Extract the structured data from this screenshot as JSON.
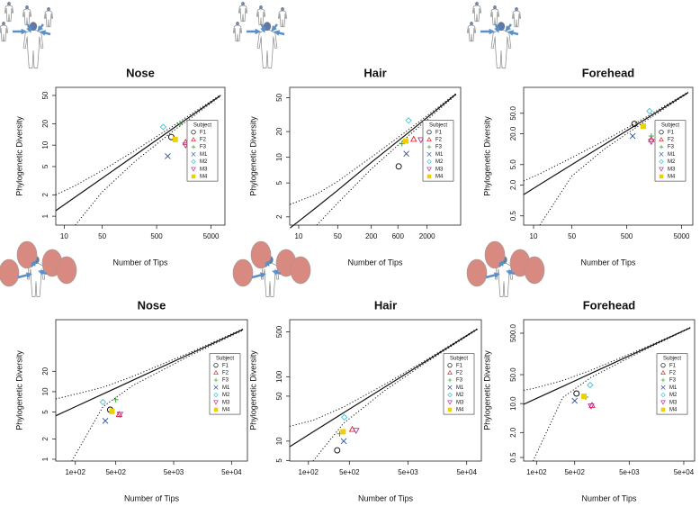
{
  "chart_data": [
    {
      "type": "scatter",
      "title": "Nose",
      "xlabel": "Number of Tips",
      "ylabel": "Phylogenetic Diversity",
      "xlog": true,
      "ylog": true,
      "xlim": [
        7,
        9000
      ],
      "ylim": [
        0.75,
        65
      ],
      "xticks": [
        10,
        50,
        500,
        5000
      ],
      "yticks": [
        1,
        2,
        5,
        10,
        20,
        50
      ],
      "legend": "right",
      "legend_title": "Subject",
      "curve": {
        "x": [
          7,
          16,
          50,
          200,
          1000,
          7500
        ],
        "values": [
          1.2,
          1.87,
          3.43,
          7.2,
          17.2,
          50
        ],
        "upper": [
          2.0,
          2.7,
          4.4,
          8.4,
          18.6,
          51
        ],
        "lower": [
          null,
          0.75,
          2.2,
          5.9,
          15.8,
          49
        ]
      },
      "series": [
        {
          "name": "F1",
          "color": "#000000",
          "marker": "circle",
          "x": [
            930
          ],
          "values": [
            13
          ]
        },
        {
          "name": "F2",
          "color": "#e0262b",
          "marker": "triangle",
          "x": [
            1700
          ],
          "values": [
            11
          ]
        },
        {
          "name": "F3",
          "color": "#2aa52a",
          "marker": "plus",
          "x": [
            1350
          ],
          "values": [
            20
          ]
        },
        {
          "name": "M1",
          "color": "#2a4f9a",
          "marker": "cross",
          "x": [
            800
          ],
          "values": [
            7
          ]
        },
        {
          "name": "M2",
          "color": "#3cc3dd",
          "marker": "diamond",
          "x": [
            660
          ],
          "values": [
            18
          ]
        },
        {
          "name": "M3",
          "color": "#b0309f",
          "marker": "triangle-down",
          "x": [
            1700
          ],
          "values": [
            10
          ]
        },
        {
          "name": "M4",
          "color": "#f0d000",
          "marker": "square",
          "x": [
            1100
          ],
          "values": [
            12
          ]
        }
      ]
    },
    {
      "type": "scatter",
      "title": "Hair",
      "xlabel": "Number of Tips",
      "ylabel": "Phylogenetic Diversity",
      "xlog": true,
      "ylog": true,
      "xlim": [
        6.9,
        8000
      ],
      "ylim": [
        1.6,
        66
      ],
      "xticks": [
        10,
        50,
        200,
        600,
        2000
      ],
      "yticks": [
        2,
        5,
        10,
        20,
        50
      ],
      "legend": "right",
      "legend_title": "Subject",
      "curve": {
        "x": [
          7,
          21,
          50,
          200,
          1000,
          6600
        ],
        "values": [
          1.48,
          2.6,
          4.1,
          8.7,
          20.2,
          55
        ],
        "upper": [
          2.8,
          3.7,
          5.2,
          10,
          21.8,
          56
        ],
        "lower": [
          null,
          1.6,
          2.9,
          7.3,
          18.6,
          54
        ]
      },
      "series": [
        {
          "name": "F1",
          "color": "#000000",
          "marker": "circle",
          "x": [
            620
          ],
          "values": [
            7.8
          ]
        },
        {
          "name": "F2",
          "color": "#e0262b",
          "marker": "triangle",
          "x": [
            1150
          ],
          "values": [
            16.3
          ]
        },
        {
          "name": "F3",
          "color": "#2aa52a",
          "marker": "plus",
          "x": [
            710
          ],
          "values": [
            14.4
          ]
        },
        {
          "name": "M1",
          "color": "#2a4f9a",
          "marker": "cross",
          "x": [
            850
          ],
          "values": [
            11
          ]
        },
        {
          "name": "M2",
          "color": "#3cc3dd",
          "marker": "diamond",
          "x": [
            930
          ],
          "values": [
            27
          ]
        },
        {
          "name": "M3",
          "color": "#b0309f",
          "marker": "triangle-down",
          "x": [
            1550
          ],
          "values": [
            16
          ]
        },
        {
          "name": "M4",
          "color": "#f0d000",
          "marker": "square",
          "x": [
            830
          ],
          "values": [
            15.5
          ]
        }
      ]
    },
    {
      "type": "scatter",
      "title": "Forehead",
      "xlabel": "Number of Tips",
      "ylabel": "Phylogenetic Diversity",
      "xlog": true,
      "ylog": true,
      "xlim": [
        6.6,
        8000
      ],
      "ylim": [
        0.33,
        160
      ],
      "xticks": [
        10,
        50,
        500,
        5000
      ],
      "yticks": [
        0.5,
        {
          "value": 2,
          "label": "2.0"
        },
        {
          "value": 5,
          "label": "5.0"
        },
        {
          "value": 20,
          "label": "20.0"
        },
        {
          "value": 50,
          "label": "50.0"
        }
      ],
      "legend": "right",
      "legend_title": "Subject",
      "curve": {
        "x": [
          6.6,
          13,
          50,
          200,
          1000,
          6600
        ],
        "values": [
          1.3,
          2.04,
          5.0,
          12.5,
          36,
          127
        ],
        "upper": [
          2.4,
          3.3,
          6.8,
          14.8,
          39,
          130
        ],
        "lower": [
          null,
          0.33,
          3.0,
          10.2,
          33,
          124
        ]
      },
      "series": [
        {
          "name": "F1",
          "color": "#000000",
          "marker": "circle",
          "x": [
            690
          ],
          "values": [
            31
          ]
        },
        {
          "name": "F2",
          "color": "#e0262b",
          "marker": "triangle",
          "x": [
            1400
          ],
          "values": [
            15.5
          ]
        },
        {
          "name": "F3",
          "color": "#2aa52a",
          "marker": "plus",
          "x": [
            1400
          ],
          "values": [
            18
          ]
        },
        {
          "name": "M1",
          "color": "#2a4f9a",
          "marker": "cross",
          "x": [
            640
          ],
          "values": [
            18
          ]
        },
        {
          "name": "M2",
          "color": "#3cc3dd",
          "marker": "diamond",
          "x": [
            1300
          ],
          "values": [
            55
          ]
        },
        {
          "name": "M3",
          "color": "#b0309f",
          "marker": "triangle-down",
          "x": [
            1400
          ],
          "values": [
            14
          ]
        },
        {
          "name": "M4",
          "color": "#f0d000",
          "marker": "square",
          "x": [
            1000
          ],
          "values": [
            28
          ]
        }
      ]
    },
    {
      "type": "scatter",
      "title": "Nose",
      "xlabel": "Number of Tips",
      "ylabel": "Phylogenetic Diversity",
      "xlog": true,
      "ylog": true,
      "xlim": [
        46,
        94000
      ],
      "ylim": [
        0.94,
        116
      ],
      "xticks": [
        {
          "value": 100,
          "label": "1e+02"
        },
        {
          "value": 500,
          "label": "5e+02"
        },
        {
          "value": 5000,
          "label": "5e+03"
        },
        {
          "value": 50000,
          "label": "5e+04"
        }
      ],
      "yticks": [
        1,
        2,
        5,
        10,
        20
      ],
      "legend": "right",
      "legend_title": "Subject",
      "curve": {
        "x": [
          46,
          87,
          300,
          1000,
          10000,
          79000
        ],
        "values": [
          4.4,
          5.65,
          9.2,
          14.8,
          36.7,
          83
        ],
        "upper": [
          7.8,
          8.9,
          11.6,
          16.9,
          38.5,
          85
        ],
        "lower": [
          null,
          0.94,
          6.0,
          12.4,
          34.8,
          81
        ]
      },
      "series": [
        {
          "name": "F1",
          "color": "#000000",
          "marker": "circle",
          "x": [
            400
          ],
          "values": [
            5.4
          ]
        },
        {
          "name": "F2",
          "color": "#e0262b",
          "marker": "triangle",
          "x": [
            570
          ],
          "values": [
            4.6
          ]
        },
        {
          "name": "F3",
          "color": "#2aa52a",
          "marker": "plus",
          "x": [
            500
          ],
          "values": [
            7.6
          ]
        },
        {
          "name": "M1",
          "color": "#2a4f9a",
          "marker": "cross",
          "x": [
            330
          ],
          "values": [
            3.7
          ]
        },
        {
          "name": "M2",
          "color": "#3cc3dd",
          "marker": "diamond",
          "x": [
            300
          ],
          "values": [
            7
          ]
        },
        {
          "name": "M3",
          "color": "#b0309f",
          "marker": "triangle-down",
          "x": [
            590
          ],
          "values": [
            4.6
          ]
        },
        {
          "name": "M4",
          "color": "#f0d000",
          "marker": "square",
          "x": [
            430
          ],
          "values": [
            5.1
          ]
        }
      ]
    },
    {
      "type": "scatter",
      "title": "Hair",
      "xlabel": "Number of Tips",
      "ylabel": "Phylogenetic Diversity",
      "xlog": true,
      "ylog": true,
      "xlim": [
        48,
        89000
      ],
      "ylim": [
        4.9,
        770
      ],
      "xticks": [
        {
          "value": 100,
          "label": "1e+02"
        },
        {
          "value": 500,
          "label": "5e+02"
        },
        {
          "value": 5000,
          "label": "5e+03"
        },
        {
          "value": 50000,
          "label": "5e+04"
        }
      ],
      "yticks": [
        5,
        10,
        50,
        100,
        500
      ],
      "legend": "right",
      "legend_title": "Subject",
      "curve": {
        "x": [
          48,
          120,
          400,
          2000,
          10000,
          76000
        ],
        "values": [
          8.2,
          13.9,
          27.6,
          69,
          173,
          550
        ],
        "upper": [
          17,
          21,
          34,
          76,
          180,
          560
        ],
        "lower": [
          null,
          4.9,
          19,
          61,
          165,
          540
        ]
      },
      "series": [
        {
          "name": "F1",
          "color": "#000000",
          "marker": "circle",
          "x": [
            310
          ],
          "values": [
            7.2
          ]
        },
        {
          "name": "F2",
          "color": "#e0262b",
          "marker": "triangle",
          "x": [
            560
          ],
          "values": [
            15.3
          ]
        },
        {
          "name": "F3",
          "color": "#2aa52a",
          "marker": "plus",
          "x": [
            340
          ],
          "values": [
            13
          ]
        },
        {
          "name": "M1",
          "color": "#2a4f9a",
          "marker": "cross",
          "x": [
            400
          ],
          "values": [
            10
          ]
        },
        {
          "name": "M2",
          "color": "#3cc3dd",
          "marker": "diamond",
          "x": [
            410
          ],
          "values": [
            23.5
          ]
        },
        {
          "name": "M3",
          "color": "#b0309f",
          "marker": "triangle-down",
          "x": [
            650
          ],
          "values": [
            14.6
          ]
        },
        {
          "name": "M4",
          "color": "#f0d000",
          "marker": "square",
          "x": [
            390
          ],
          "values": [
            14
          ]
        }
      ]
    },
    {
      "type": "scatter",
      "title": "Forehead",
      "xlabel": "Number of Tips",
      "ylabel": "Phylogenetic Diversity",
      "xlog": true,
      "ylog": true,
      "xlim": [
        58,
        79000
      ],
      "ylim": [
        0.41,
        1060
      ],
      "xticks": [
        {
          "value": 100,
          "label": "1e+02"
        },
        {
          "value": 500,
          "label": "5e+02"
        },
        {
          "value": 5000,
          "label": "5e+03"
        },
        {
          "value": 50000,
          "label": "5e+04"
        }
      ],
      "yticks": [
        0.5,
        {
          "value": 2,
          "label": "2.0"
        },
        {
          "value": 10,
          "label": "10.0"
        },
        {
          "value": 50,
          "label": "50.0"
        },
        {
          "value": 500,
          "label": "500.0"
        }
      ],
      "legend": "right",
      "legend_title": "Subject",
      "curve": {
        "x": [
          58,
          86,
          300,
          1000,
          10000,
          66000
        ],
        "values": [
          9.6,
          12.2,
          25.9,
          53.8,
          216,
          680
        ],
        "upper": [
          21,
          23,
          36,
          64,
          228,
          690
        ],
        "lower": [
          null,
          0.41,
          14,
          43,
          204,
          670
        ]
      },
      "series": [
        {
          "name": "F1",
          "color": "#000000",
          "marker": "circle",
          "x": [
            540
          ],
          "values": [
            17.5
          ]
        },
        {
          "name": "F2",
          "color": "#e0262b",
          "marker": "triangle",
          "x": [
            1040
          ],
          "values": [
            9.1
          ]
        },
        {
          "name": "F3",
          "color": "#2aa52a",
          "marker": "plus",
          "x": [
            800
          ],
          "values": [
            14.4
          ]
        },
        {
          "name": "M1",
          "color": "#2a4f9a",
          "marker": "cross",
          "x": [
            500
          ],
          "values": [
            11.7
          ]
        },
        {
          "name": "M2",
          "color": "#3cc3dd",
          "marker": "diamond",
          "x": [
            960
          ],
          "values": [
            28
          ]
        },
        {
          "name": "M3",
          "color": "#b0309f",
          "marker": "triangle-down",
          "x": [
            1000
          ],
          "values": [
            8.7
          ]
        },
        {
          "name": "M4",
          "color": "#f0d000",
          "marker": "square",
          "x": [
            740
          ],
          "values": [
            15
          ]
        }
      ]
    }
  ]
}
